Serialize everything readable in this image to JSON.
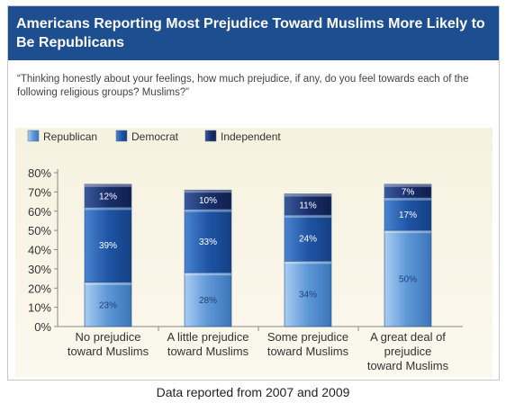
{
  "header": {
    "title": "Americans Reporting Most Prejudice Toward Muslims More Likely to Be Republicans",
    "question": "“Thinking honestly about your feelings, how much prejudice, if any, do you feel towards each of the following religious groups? Muslims?”"
  },
  "footer": {
    "caption": "Data reported from 2007 and 2009"
  },
  "colors": {
    "republican": "#5d97d6",
    "democrat": "#1f55a5",
    "independent": "#1a2f6b",
    "title_bar": "#1d4e8f"
  },
  "chart_data": {
    "type": "bar",
    "stacked": true,
    "title": "Americans Reporting Most Prejudice Toward Muslims More Likely to Be Republicans",
    "categories": [
      "No prejudice toward Muslims",
      "A little prejudice toward Muslims",
      "Some prejudice toward Muslims",
      "A great deal of prejudice toward Muslims"
    ],
    "category_lines": [
      [
        "No prejudice",
        "toward Muslims"
      ],
      [
        "A little prejudice",
        "toward Muslims"
      ],
      [
        "Some prejudice",
        "toward Muslims"
      ],
      [
        "A great deal of",
        "prejudice",
        "toward Muslims"
      ]
    ],
    "series": [
      {
        "name": "Republican",
        "values": [
          23,
          28,
          34,
          50
        ],
        "labels": [
          "23%",
          "28%",
          "34%",
          "50%"
        ]
      },
      {
        "name": "Democrat",
        "values": [
          39,
          33,
          24,
          17
        ],
        "labels": [
          "39%",
          "33%",
          "24%",
          "17%"
        ]
      },
      {
        "name": "Independent",
        "values": [
          12,
          10,
          11,
          7
        ],
        "labels": [
          "12%",
          "10%",
          "11%",
          "7%"
        ]
      }
    ],
    "ylim": [
      0,
      80
    ],
    "yticks": [
      "0%",
      "10%",
      "20%",
      "30%",
      "40%",
      "50%",
      "60%",
      "70%",
      "80%"
    ],
    "grid": false,
    "legend": "top-left"
  }
}
